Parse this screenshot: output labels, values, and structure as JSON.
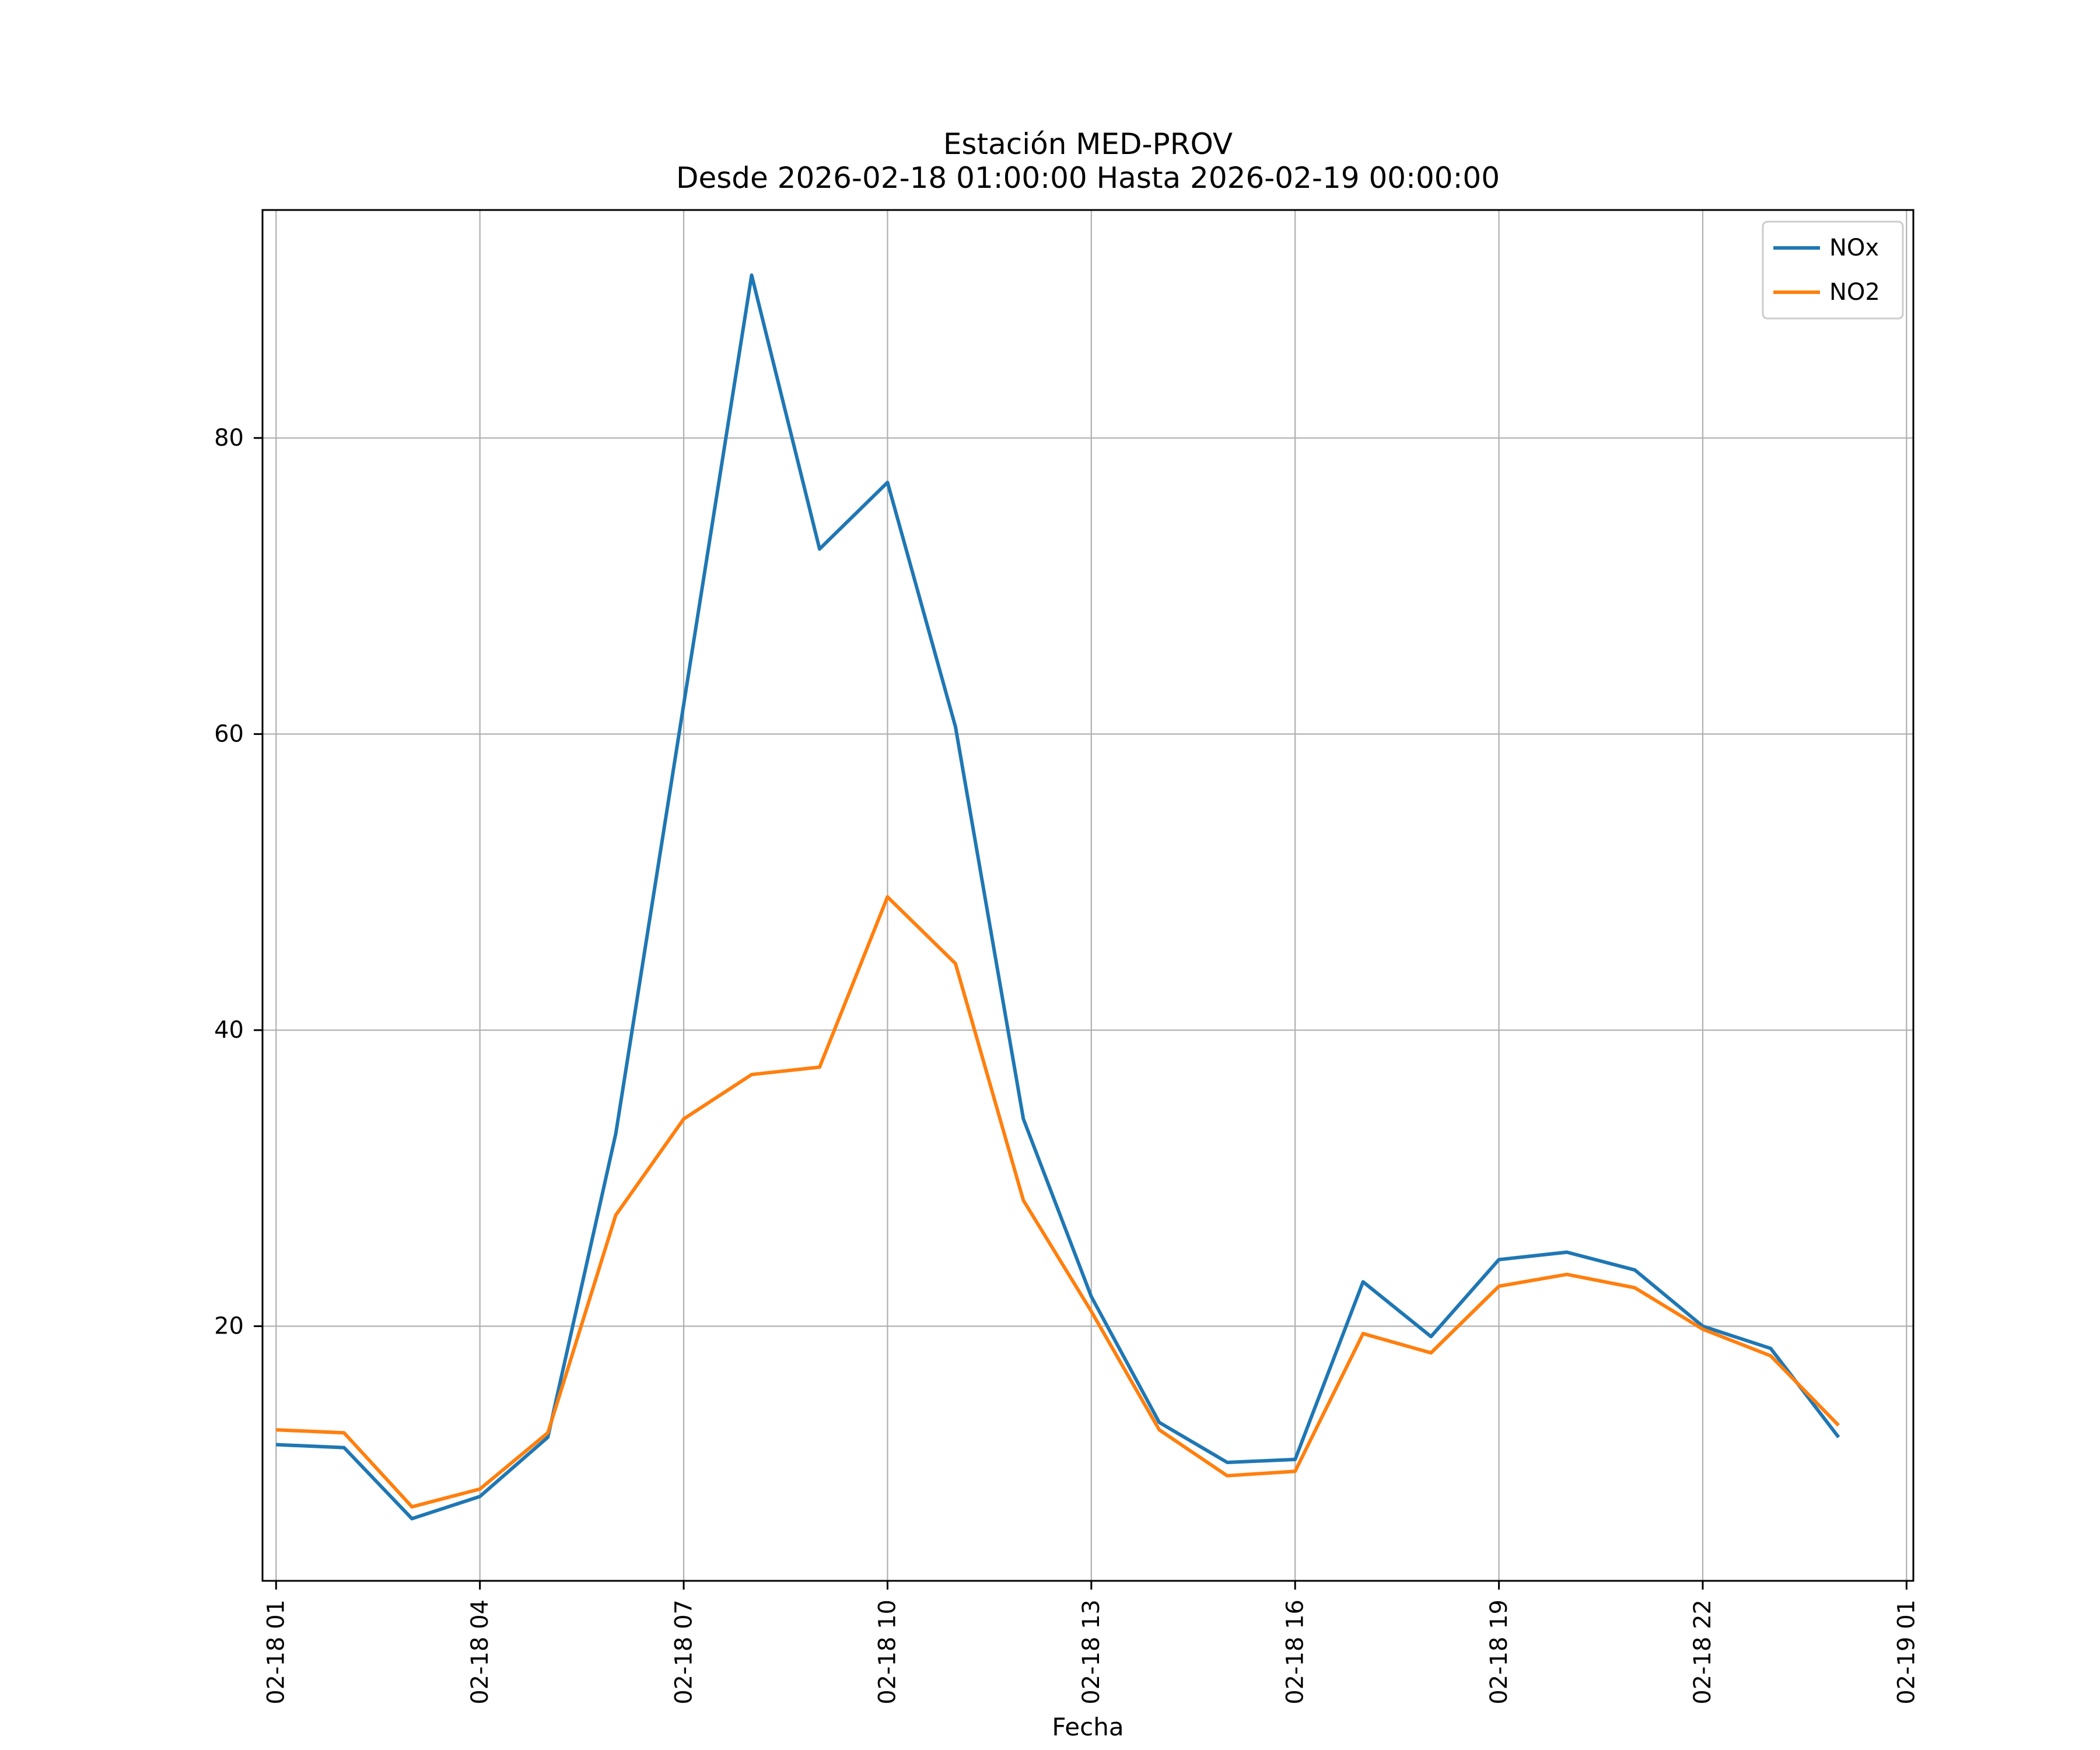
{
  "title": "Estación MED-PROV",
  "subtitle": "Desde 2026-02-18 01:00:00 Hasta 2026-02-19 00:00:00",
  "xlabel": "Fecha",
  "colors": {
    "nox_line": "#1f77b4",
    "no2_line": "#ff7f0e",
    "grid": "#b0b0b0",
    "spine": "#000000",
    "legend_edge": "#cccccc"
  },
  "chart_data": {
    "type": "line",
    "title": "Estación MED-PROV",
    "subtitle": "Desde 2026-02-18 01:00:00 Hasta 2026-02-19 00:00:00",
    "xlabel": "Fecha",
    "ylabel": "",
    "grid": true,
    "legend_position": "upper right",
    "x_hours": [
      1,
      2,
      3,
      4,
      5,
      6,
      7,
      8,
      9,
      10,
      11,
      12,
      13,
      14,
      15,
      16,
      17,
      18,
      19,
      20,
      21,
      22,
      23,
      24
    ],
    "series": [
      {
        "name": "NOx",
        "color": "#1f77b4",
        "values": [
          12,
          11.8,
          7,
          8.5,
          12.5,
          33,
          62,
          91,
          72.5,
          77,
          60.5,
          34,
          22,
          13.5,
          10.8,
          11,
          23,
          19.3,
          24.5,
          25,
          23.8,
          20,
          18.5,
          12.5
        ]
      },
      {
        "name": "NO2",
        "color": "#ff7f0e",
        "values": [
          13,
          12.8,
          7.8,
          9,
          12.8,
          27.5,
          34,
          37,
          37.5,
          49,
          44.5,
          28.5,
          21,
          13,
          9.9,
          10.2,
          19.5,
          18.2,
          22.7,
          23.5,
          22.6,
          19.8,
          18,
          13.3
        ]
      }
    ],
    "x_tick_hours": [
      1,
      4,
      7,
      10,
      13,
      16,
      19,
      22,
      25
    ],
    "x_tick_labels": [
      "02-18 01",
      "02-18 04",
      "02-18 07",
      "02-18 10",
      "02-18 13",
      "02-18 16",
      "02-18 19",
      "02-18 22",
      "02-19 01"
    ],
    "y_ticks": [
      20,
      40,
      60,
      80
    ],
    "xlim": [
      0.8,
      25.1
    ],
    "ylim": [
      2.8,
      95.4
    ]
  }
}
